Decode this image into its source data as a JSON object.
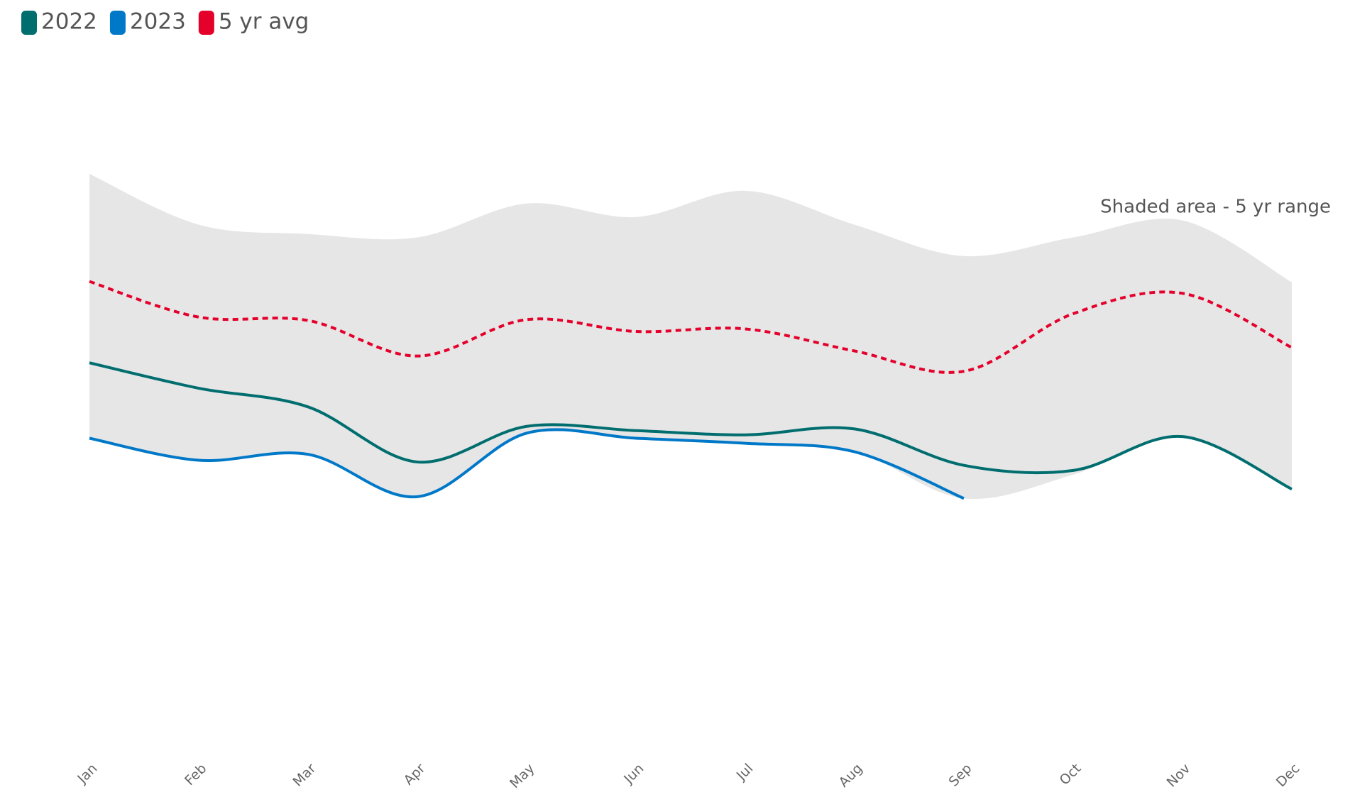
{
  "chart_data": {
    "type": "line",
    "categories": [
      "Jan",
      "Feb",
      "Mar",
      "Apr",
      "May",
      "Jun",
      "Jul",
      "Aug",
      "Sep",
      "Oct",
      "Nov",
      "Dec"
    ],
    "series": [
      {
        "name": "2022",
        "color": "#006d6f",
        "dash": false,
        "values": [
          54.4,
          48.4,
          44,
          31,
          39.4,
          38.4,
          37.4,
          38.8,
          30.2,
          29,
          37,
          24.6
        ]
      },
      {
        "name": "2023",
        "color": "#0078c8",
        "dash": false,
        "values": [
          36.6,
          31.4,
          32.8,
          22.8,
          37.8,
          36.6,
          35.4,
          33.4,
          22.4,
          null,
          null,
          null
        ]
      },
      {
        "name": "5 yr avg",
        "color": "#e4002b",
        "dash": true,
        "values": [
          73.6,
          65.2,
          64.4,
          56,
          64.6,
          61.8,
          62.4,
          57.2,
          52.4,
          66,
          70.8,
          58
        ]
      }
    ],
    "band": {
      "color": "#e6e6e6",
      "upper": [
        99,
        87,
        84.8,
        84,
        92,
        88.8,
        95,
        87,
        79.6,
        84,
        88,
        73.4
      ],
      "lower": [
        36.6,
        31.4,
        32.8,
        22.8,
        37.8,
        36.6,
        35.4,
        33.4,
        22.4,
        28,
        37,
        24.6
      ]
    },
    "annotation": "Shaded area - 5 yr range",
    "ylim": [
      0,
      100
    ],
    "legend": "top-left"
  }
}
